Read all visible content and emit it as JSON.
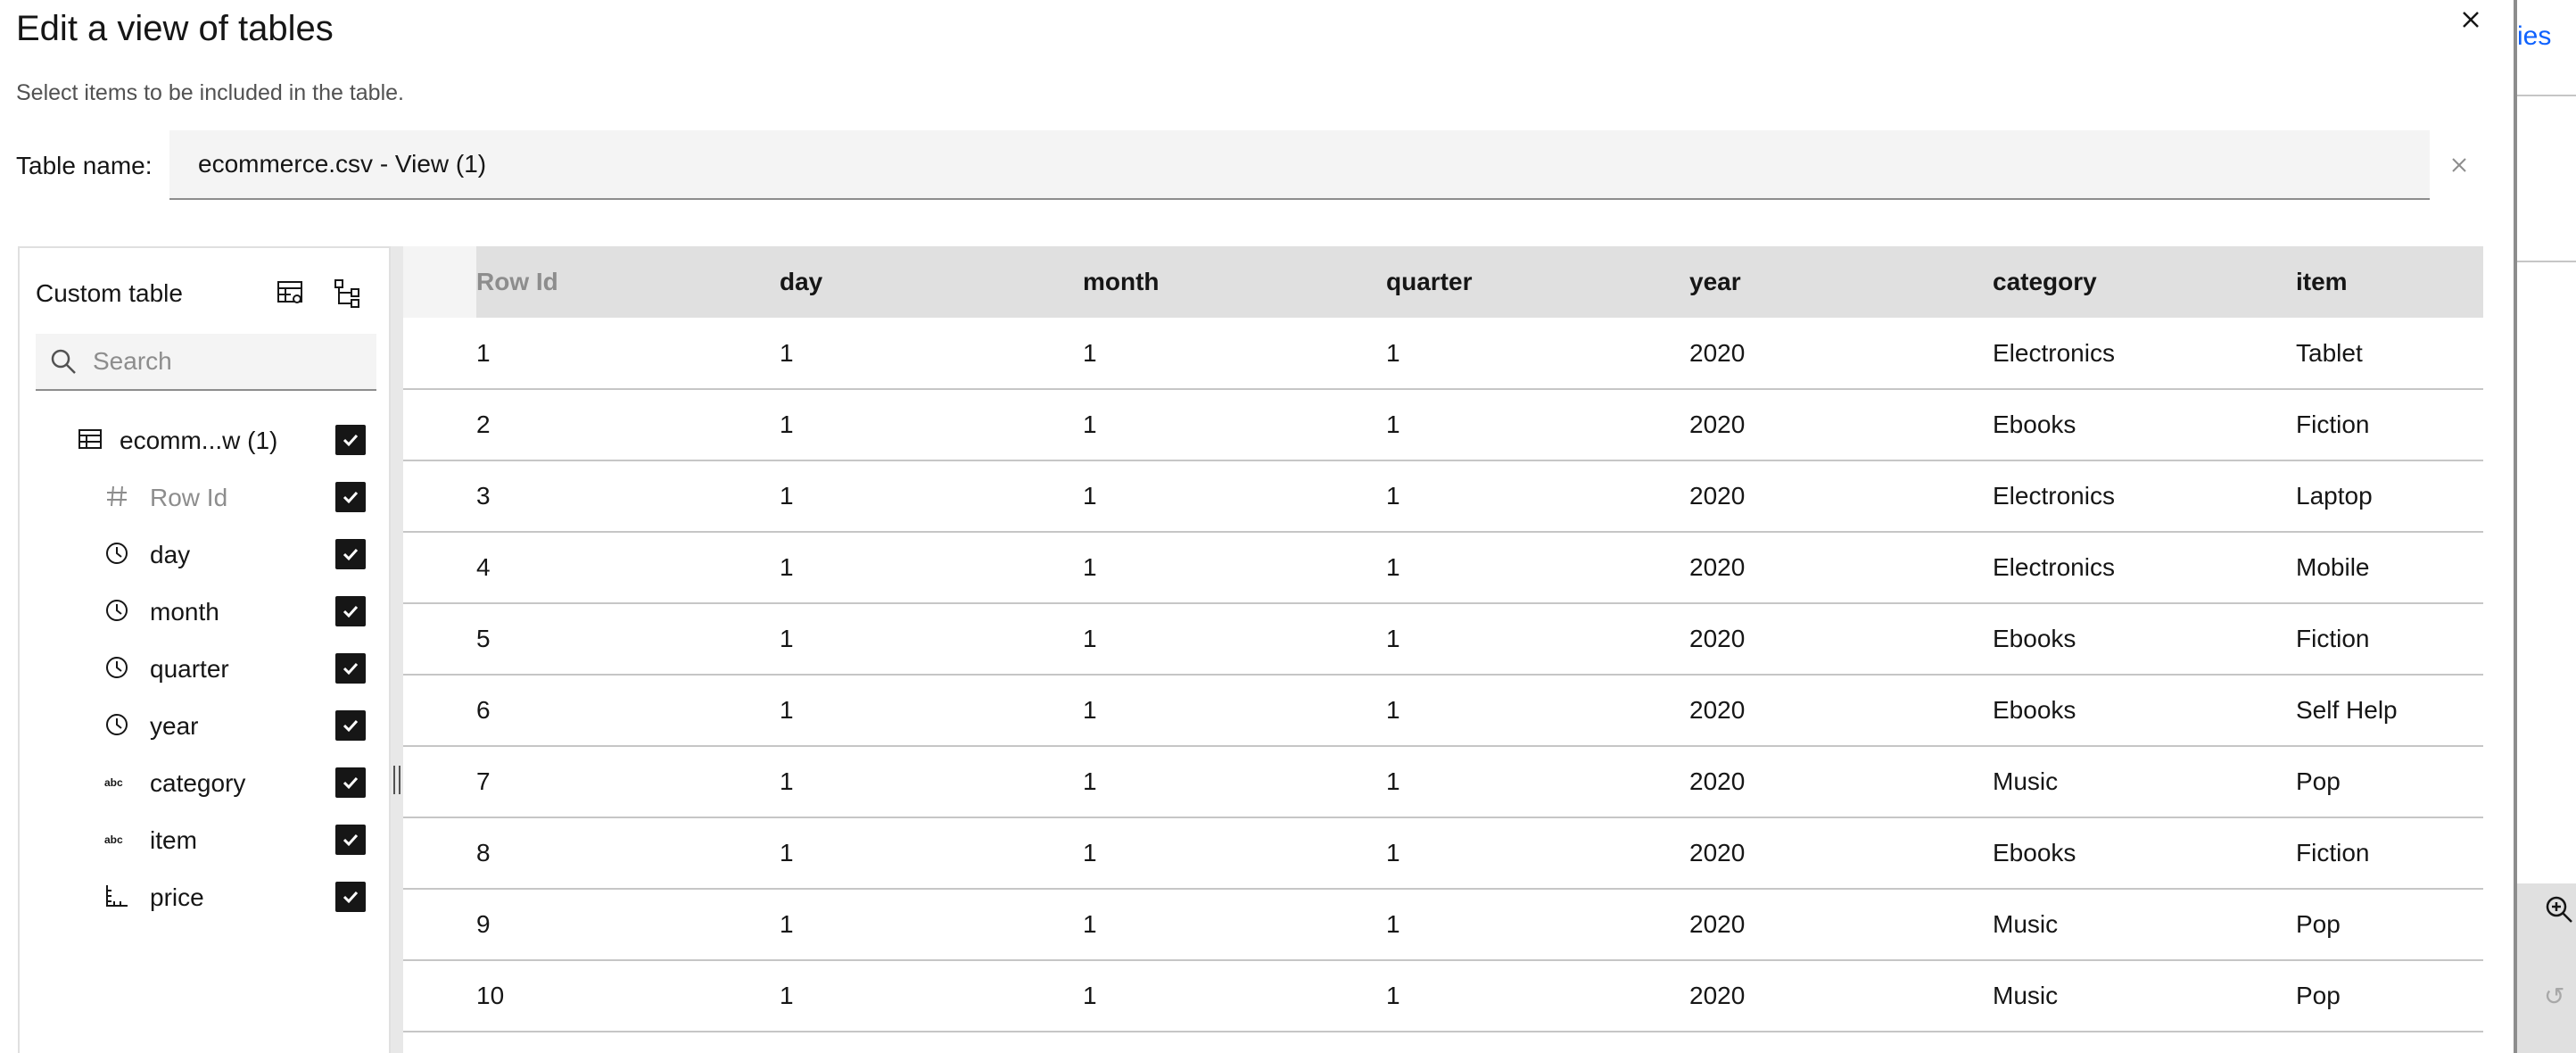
{
  "dialog": {
    "title": "Edit a view of tables",
    "subtitle": "Select items to be included in the table.",
    "table_name_label": "Table name:",
    "table_name_value": "ecommerce.csv - View (1)"
  },
  "panel": {
    "title": "Custom table",
    "search_placeholder": "Search",
    "root": {
      "label": "ecomm...w (1)",
      "checked": true,
      "icon": "table-icon"
    },
    "items": [
      {
        "label": "Row Id",
        "icon": "hash-icon",
        "checked": true,
        "disabled": true
      },
      {
        "label": "day",
        "icon": "clock-icon",
        "checked": true
      },
      {
        "label": "month",
        "icon": "clock-icon",
        "checked": true
      },
      {
        "label": "quarter",
        "icon": "clock-icon",
        "checked": true
      },
      {
        "label": "year",
        "icon": "clock-icon",
        "checked": true
      },
      {
        "label": "category",
        "icon": "abc-icon",
        "checked": true
      },
      {
        "label": "item",
        "icon": "abc-icon",
        "checked": true
      },
      {
        "label": "price",
        "icon": "measure-icon",
        "checked": true
      }
    ]
  },
  "table": {
    "columns": [
      "Row Id",
      "day",
      "month",
      "quarter",
      "year",
      "category",
      "item"
    ],
    "rows": [
      [
        "1",
        "1",
        "1",
        "1",
        "2020",
        "Electronics",
        "Tablet"
      ],
      [
        "2",
        "1",
        "1",
        "1",
        "2020",
        "Ebooks",
        "Fiction"
      ],
      [
        "3",
        "1",
        "1",
        "1",
        "2020",
        "Electronics",
        "Laptop"
      ],
      [
        "4",
        "1",
        "1",
        "1",
        "2020",
        "Electronics",
        "Mobile"
      ],
      [
        "5",
        "1",
        "1",
        "1",
        "2020",
        "Ebooks",
        "Fiction"
      ],
      [
        "6",
        "1",
        "1",
        "1",
        "2020",
        "Ebooks",
        "Self Help"
      ],
      [
        "7",
        "1",
        "1",
        "1",
        "2020",
        "Music",
        "Pop"
      ],
      [
        "8",
        "1",
        "1",
        "1",
        "2020",
        "Ebooks",
        "Fiction"
      ],
      [
        "9",
        "1",
        "1",
        "1",
        "2020",
        "Music",
        "Pop"
      ],
      [
        "10",
        "1",
        "1",
        "1",
        "2020",
        "Music",
        "Pop"
      ]
    ]
  },
  "background": {
    "link_fragment": "ies"
  },
  "colors": {
    "accent": "#0f62fe",
    "text": "#161616",
    "muted": "#8d8d8d",
    "header_bg": "#e0e0e0"
  }
}
